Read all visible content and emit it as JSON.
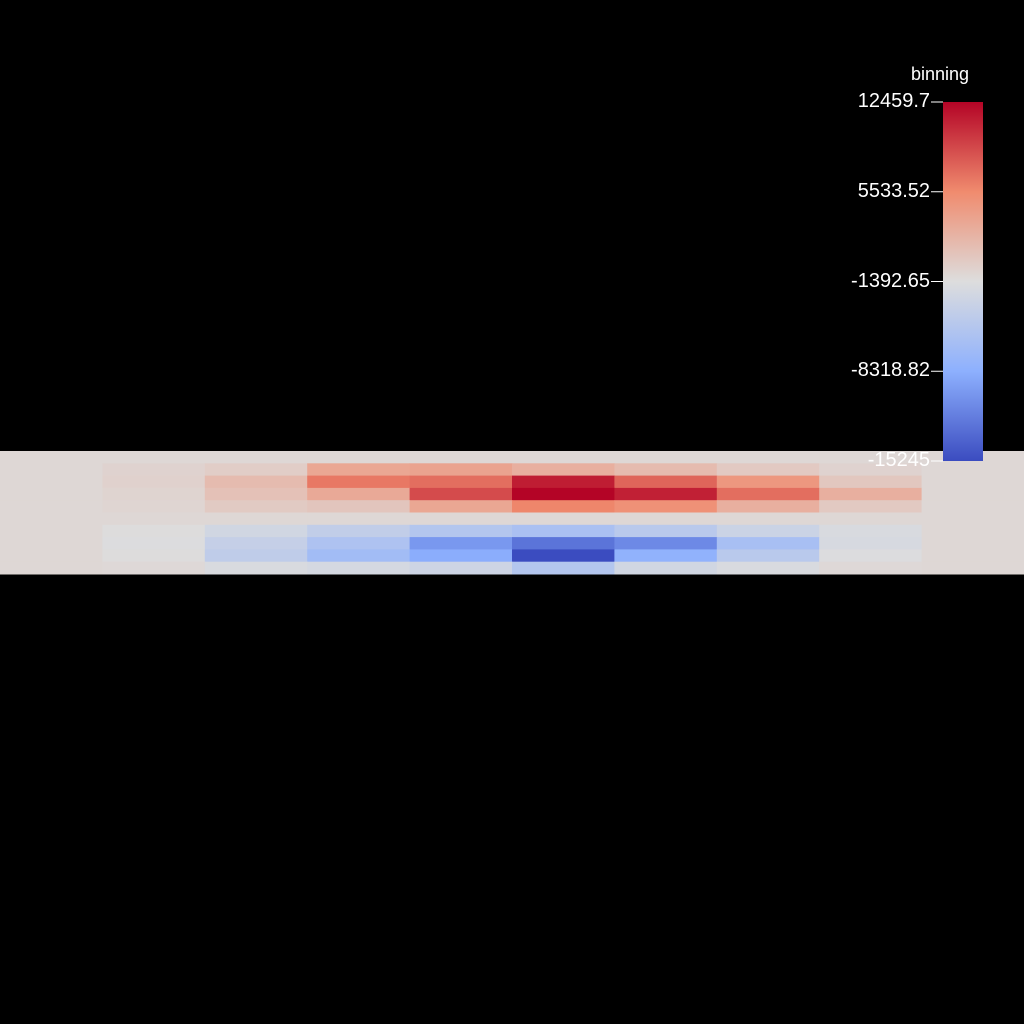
{
  "chart_data": {
    "type": "heatmap",
    "title": "",
    "scalar_name": "binning",
    "range": [
      -15245,
      12459.7
    ],
    "colormap": "cool-to-warm",
    "colormap_stops": [
      "#3b4cc0",
      "#dddddd",
      "#b40426"
    ],
    "background_field_value": -900,
    "ticks": [
      {
        "value": 12459.7,
        "label": "12459.7"
      },
      {
        "value": 5533.52,
        "label": "5533.52"
      },
      {
        "value": -1392.65,
        "label": "-1392.65"
      },
      {
        "value": -8318.82,
        "label": "-8318.82"
      },
      {
        "value": -15245,
        "label": "-15245"
      }
    ],
    "grid": {
      "columns": 10,
      "rows": 10,
      "values": [
        [
          -900,
          -900,
          -900,
          -900,
          -900,
          -900,
          -900,
          -900,
          -900,
          -900
        ],
        [
          -900,
          -500,
          0,
          3200,
          3500,
          2500,
          1500,
          300,
          -500,
          -900
        ],
        [
          -900,
          -400,
          1500,
          6500,
          7000,
          11200,
          7500,
          4500,
          500,
          -900
        ],
        [
          -900,
          -600,
          1000,
          3000,
          8800,
          12459.7,
          11000,
          7000,
          2500,
          -900
        ],
        [
          -900,
          -700,
          200,
          600,
          3200,
          5800,
          5000,
          2500,
          300,
          -900
        ],
        [
          -900,
          -900,
          -900,
          -900,
          -900,
          -900,
          -900,
          -900,
          -900,
          -900
        ],
        [
          -900,
          -1300,
          -2500,
          -3800,
          -5000,
          -5800,
          -4500,
          -3000,
          -1800,
          -900
        ],
        [
          -900,
          -1500,
          -3500,
          -5500,
          -10000,
          -12500,
          -11000,
          -6000,
          -2000,
          -900
        ],
        [
          -900,
          -1300,
          -4000,
          -6500,
          -8500,
          -15245,
          -8000,
          -4500,
          -1500,
          -900
        ],
        [
          -900,
          -1000,
          -1800,
          -2200,
          -2800,
          -5000,
          -2500,
          -1800,
          -1000,
          -900
        ]
      ]
    }
  }
}
